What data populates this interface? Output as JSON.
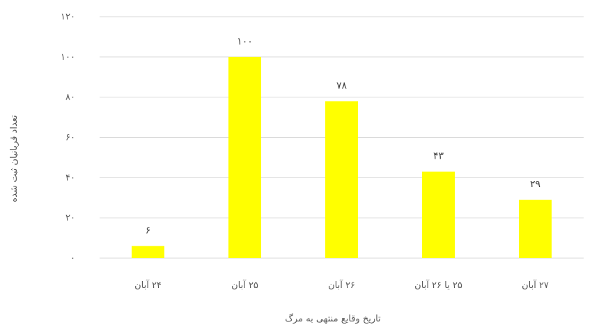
{
  "chart_data": {
    "type": "bar",
    "title": "",
    "xlabel": "تاریخ وقایع منتهی به مرگ",
    "ylabel": "تعداد قربانیان ثبت شده",
    "categories": [
      "۲۴ آبان",
      "۲۵ آبان",
      "۲۶ آبان",
      "۲۵ یا ۲۶ آبان",
      "۲۷ آبان"
    ],
    "values": [
      6,
      100,
      78,
      43,
      29
    ],
    "value_labels": [
      "۶",
      "۱۰۰",
      "۷۸",
      "۴۳",
      "۲۹"
    ],
    "ylim": [
      0,
      120
    ],
    "yticks": [
      0,
      20,
      40,
      60,
      80,
      100,
      120
    ],
    "ytick_labels": [
      "۰",
      "۲۰",
      "۴۰",
      "۶۰",
      "۸۰",
      "۱۰۰",
      "۱۲۰"
    ],
    "grid": true,
    "legend": "none",
    "bar_color": "#ffff00",
    "grid_color": "#d9d9d9"
  }
}
